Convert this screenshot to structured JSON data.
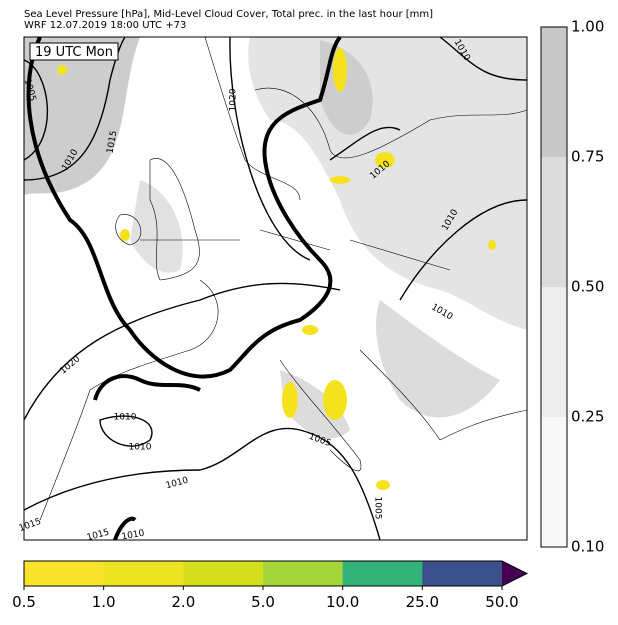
{
  "header": {
    "line1": "Sea Level Pressure [hPa], Mid-Level Cloud Cover, Total prec. in the last hour [mm]",
    "line2": "WRF 12.07.2019 18:00 UTC +73"
  },
  "map": {
    "time_label": "19 UTC Mon",
    "contour_labels": [
      "1005",
      "1010",
      "1015",
      "1020",
      "1010",
      "1010",
      "1010",
      "1010",
      "1020",
      "1010",
      "1010",
      "1005",
      "1010",
      "1005",
      "1015",
      "1015",
      "1010"
    ]
  },
  "cloud_colorbar": {
    "ticks": [
      "1.00",
      "0.75",
      "0.50",
      "0.25",
      "0.10"
    ],
    "colors": [
      "#c8c8c8",
      "#dcdcdc",
      "#ececec",
      "#f8f8f8"
    ]
  },
  "precip_colorbar": {
    "ticks": [
      "0.5",
      "1.0",
      "2.0",
      "5.0",
      "10.0",
      "25.0",
      "50.0"
    ],
    "colors": [
      "#f9e42b",
      "#ebe31f",
      "#d6df1d",
      "#a4d63c",
      "#31b37a",
      "#3c508b"
    ],
    "extend_color": "#440154"
  }
}
